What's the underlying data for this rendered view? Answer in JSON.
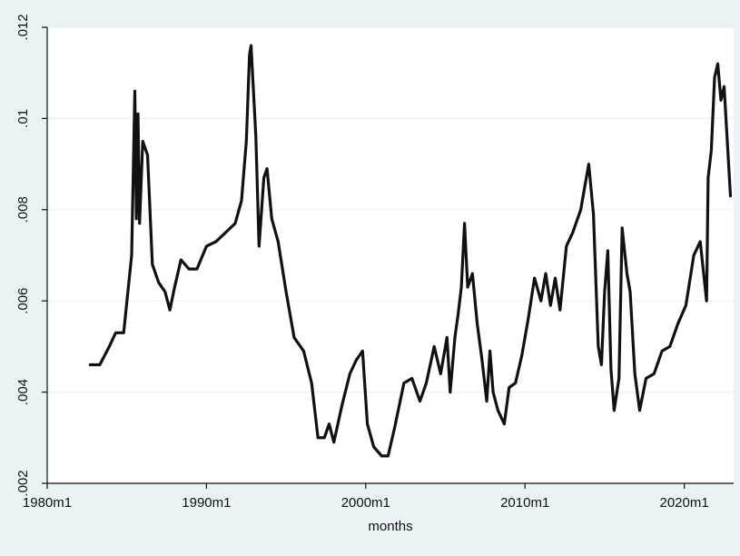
{
  "chart_data": {
    "type": "line",
    "title": "",
    "xlabel": "months",
    "ylabel": "",
    "xlim": [
      1980,
      2023.1
    ],
    "ylim": [
      0.002,
      0.012
    ],
    "grid": true,
    "x_ticks": [
      {
        "value": 1980,
        "label": "1980m1"
      },
      {
        "value": 1990,
        "label": "1990m1"
      },
      {
        "value": 2000,
        "label": "2000m1"
      },
      {
        "value": 2010,
        "label": "2010m1"
      },
      {
        "value": 2020,
        "label": "2020m1"
      }
    ],
    "y_ticks": [
      {
        "value": 0.002,
        "label": ".002"
      },
      {
        "value": 0.004,
        "label": ".004"
      },
      {
        "value": 0.006,
        "label": ".006"
      },
      {
        "value": 0.008,
        "label": ".008"
      },
      {
        "value": 0.01,
        "label": ".01"
      },
      {
        "value": 0.012,
        "label": ".012"
      }
    ],
    "colors": {
      "outer_background": "#eaf2f3",
      "plot_background": "#ffffff",
      "grid": "#eaf2f3",
      "line": "#111111"
    },
    "series": [
      {
        "name": "",
        "x": [
          1982.7,
          1983.3,
          1983.9,
          1984.3,
          1984.8,
          1985.3,
          1985.5,
          1985.6,
          1985.7,
          1985.8,
          1986.0,
          1986.3,
          1986.6,
          1987.0,
          1987.4,
          1987.7,
          1988.0,
          1988.4,
          1988.9,
          1989.4,
          1990.0,
          1990.6,
          1991.2,
          1991.8,
          1992.2,
          1992.5,
          1992.7,
          1992.8,
          1993.1,
          1993.3,
          1993.6,
          1993.8,
          1994.1,
          1994.5,
          1995.0,
          1995.5,
          1996.1,
          1996.6,
          1997.0,
          1997.4,
          1997.7,
          1998.0,
          1998.5,
          1999.0,
          1999.4,
          1999.8,
          2000.1,
          2000.5,
          2001.0,
          2001.4,
          2001.8,
          2002.4,
          2002.9,
          2003.4,
          2003.8,
          2004.3,
          2004.7,
          2005.1,
          2005.3,
          2005.6,
          2005.8,
          2006.0,
          2006.2,
          2006.4,
          2006.7,
          2007.0,
          2007.3,
          2007.6,
          2007.8,
          2008.0,
          2008.3,
          2008.7,
          2009.0,
          2009.4,
          2009.8,
          2010.2,
          2010.6,
          2011.0,
          2011.3,
          2011.6,
          2011.9,
          2012.2,
          2012.6,
          2013.0,
          2013.5,
          2014.0,
          2014.3,
          2014.6,
          2014.8,
          2015.0,
          2015.2,
          2015.4,
          2015.6,
          2015.9,
          2016.1,
          2016.4,
          2016.6,
          2016.9,
          2017.2,
          2017.6,
          2018.1,
          2018.6,
          2019.1,
          2019.6,
          2020.1,
          2020.6,
          2021.0,
          2021.4,
          2021.5,
          2021.7,
          2021.9,
          2022.1,
          2022.3,
          2022.5,
          2022.7,
          2022.9
        ],
        "y": [
          0.0046,
          0.0046,
          0.005,
          0.0053,
          0.0053,
          0.007,
          0.0106,
          0.0078,
          0.0101,
          0.0077,
          0.0095,
          0.0092,
          0.0068,
          0.0064,
          0.0062,
          0.0058,
          0.0063,
          0.0069,
          0.0067,
          0.0067,
          0.0072,
          0.0073,
          0.0075,
          0.0077,
          0.0082,
          0.0095,
          0.0114,
          0.0116,
          0.0096,
          0.0072,
          0.0087,
          0.0089,
          0.0078,
          0.0073,
          0.0062,
          0.0052,
          0.0049,
          0.0042,
          0.003,
          0.003,
          0.0033,
          0.0029,
          0.0037,
          0.0044,
          0.0047,
          0.0049,
          0.0033,
          0.0028,
          0.0026,
          0.0026,
          0.0032,
          0.0042,
          0.0043,
          0.0038,
          0.0042,
          0.005,
          0.0044,
          0.0052,
          0.004,
          0.0052,
          0.0057,
          0.0063,
          0.0077,
          0.0063,
          0.0066,
          0.0055,
          0.0047,
          0.0038,
          0.0049,
          0.004,
          0.0036,
          0.0033,
          0.0041,
          0.0042,
          0.0048,
          0.0056,
          0.0065,
          0.006,
          0.0066,
          0.0059,
          0.0065,
          0.0058,
          0.0072,
          0.0075,
          0.008,
          0.009,
          0.0079,
          0.005,
          0.0046,
          0.0062,
          0.0071,
          0.0045,
          0.0036,
          0.0043,
          0.0076,
          0.0066,
          0.0062,
          0.0044,
          0.0036,
          0.0043,
          0.0044,
          0.0049,
          0.005,
          0.0055,
          0.0059,
          0.007,
          0.0073,
          0.006,
          0.0087,
          0.0093,
          0.0109,
          0.0112,
          0.0104,
          0.0107,
          0.0095,
          0.0083
        ]
      }
    ]
  }
}
